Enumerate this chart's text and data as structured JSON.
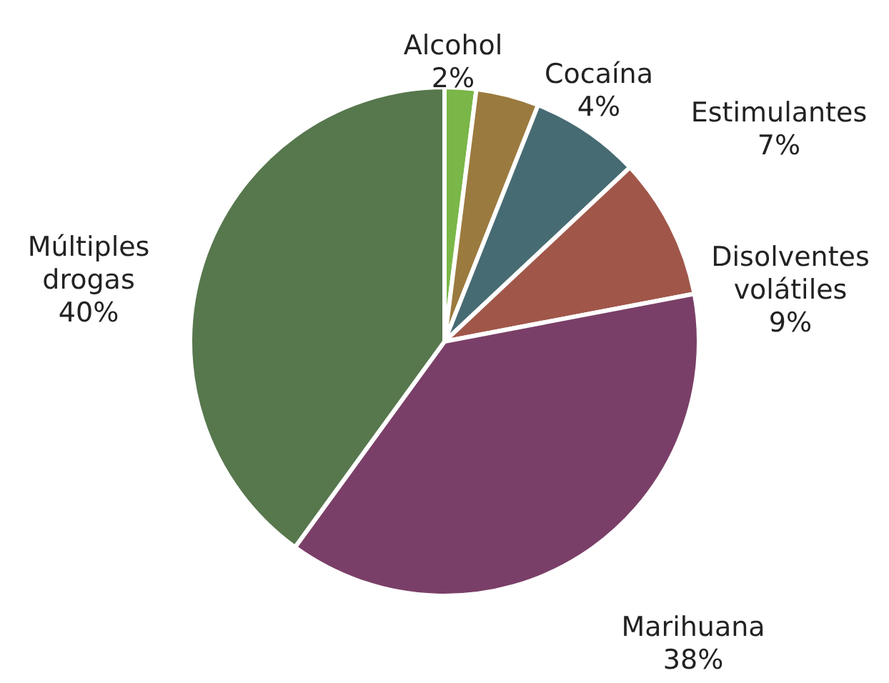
{
  "chart_data": {
    "type": "pie",
    "categories": [
      "Alcohol",
      "Cocaína",
      "Estimulantes",
      "Disolventes volátiles",
      "Marihuana",
      "Múltiples drogas"
    ],
    "values": [
      2,
      4,
      7,
      9,
      38,
      40
    ],
    "colors": [
      "#7ab648",
      "#9b7a3f",
      "#476b73",
      "#a0574a",
      "#7a3f68",
      "#57774d"
    ],
    "value_labels": [
      "2%",
      "4%",
      "7%",
      "9%",
      "38%",
      "40%"
    ]
  }
}
